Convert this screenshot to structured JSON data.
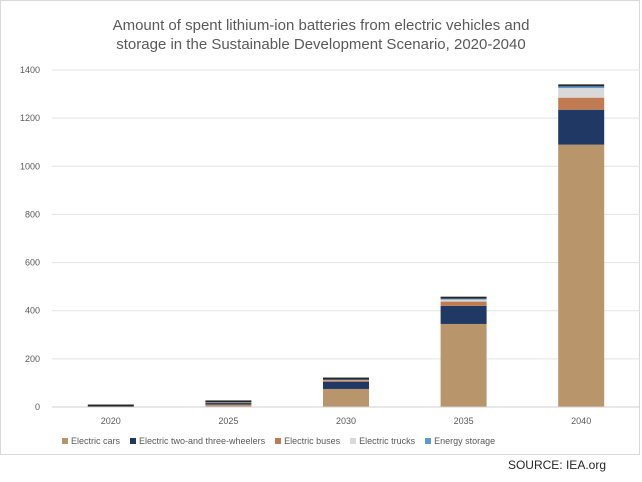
{
  "chart_data": {
    "type": "bar",
    "stacked": true,
    "title_line1": "Amount of spent lithium-ion batteries from electric vehicles and",
    "title_line2": "storage in the Sustainable Development Scenario, 2020-2040",
    "categories": [
      "2020",
      "2025",
      "2030",
      "2035",
      "2040"
    ],
    "ylim": [
      0,
      1400
    ],
    "yticks": [
      0,
      200,
      400,
      600,
      800,
      1000,
      1200,
      1400
    ],
    "grid": true,
    "legend_position": "bottom",
    "series": [
      {
        "name": "Electric cars",
        "color": "#b8956a",
        "values": [
          2,
          10,
          75,
          345,
          1090
        ]
      },
      {
        "name": "Electric two-and three-wheelers",
        "color": "#1f3864",
        "values": [
          0,
          7,
          30,
          75,
          145
        ]
      },
      {
        "name": "Electric buses",
        "color": "#c07b52",
        "values": [
          0,
          1,
          6,
          18,
          50
        ]
      },
      {
        "name": "Electric trucks",
        "color": "#d9d9d9",
        "values": [
          0,
          1,
          2,
          8,
          40
        ]
      },
      {
        "name": "Energy storage",
        "color": "#5b9bd5",
        "values": [
          0,
          0,
          1,
          4,
          7
        ]
      }
    ],
    "top_color": "#262626",
    "source": "SOURCE: IEA.org"
  }
}
